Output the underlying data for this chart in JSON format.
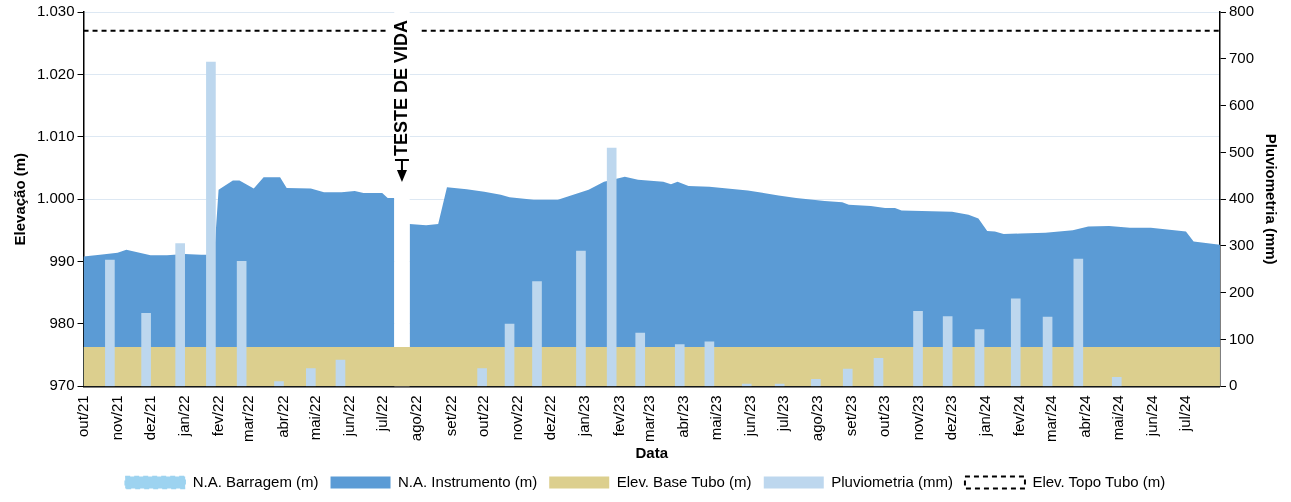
{
  "chart_data": {
    "type": "area",
    "xlabel": "Data",
    "ylabel": "Elevação (m)",
    "y2label": "Pluviometria (mm)",
    "xlim": [
      "2021-10-01",
      "2024-08-01"
    ],
    "xticks": [
      {
        "value": "2021-10-01",
        "label": "out/21"
      },
      {
        "value": "2021-11-01",
        "label": "nov/21"
      },
      {
        "value": "2021-12-01",
        "label": "dez/21"
      },
      {
        "value": "2022-01-01",
        "label": "jan/22"
      },
      {
        "value": "2022-02-01",
        "label": "fev/22"
      },
      {
        "value": "2022-03-01",
        "label": "mar/22"
      },
      {
        "value": "2022-04-01",
        "label": "abr/22"
      },
      {
        "value": "2022-05-01",
        "label": "mai/22"
      },
      {
        "value": "2022-06-01",
        "label": "jun/22"
      },
      {
        "value": "2022-07-01",
        "label": "jul/22"
      },
      {
        "value": "2022-08-01",
        "label": "ago/22"
      },
      {
        "value": "2022-09-01",
        "label": "set/22"
      },
      {
        "value": "2022-10-01",
        "label": "out/22"
      },
      {
        "value": "2022-11-01",
        "label": "nov/22"
      },
      {
        "value": "2022-12-01",
        "label": "dez/22"
      },
      {
        "value": "2023-01-01",
        "label": "jan/23"
      },
      {
        "value": "2023-02-01",
        "label": "fev/23"
      },
      {
        "value": "2023-03-01",
        "label": "mar/23"
      },
      {
        "value": "2023-04-01",
        "label": "abr/23"
      },
      {
        "value": "2023-05-01",
        "label": "mai/23"
      },
      {
        "value": "2023-06-01",
        "label": "jun/23"
      },
      {
        "value": "2023-07-01",
        "label": "jul/23"
      },
      {
        "value": "2023-08-01",
        "label": "ago/23"
      },
      {
        "value": "2023-09-01",
        "label": "set/23"
      },
      {
        "value": "2023-10-01",
        "label": "out/23"
      },
      {
        "value": "2023-11-01",
        "label": "nov/23"
      },
      {
        "value": "2023-12-01",
        "label": "dez/23"
      },
      {
        "value": "2024-01-01",
        "label": "jan/24"
      },
      {
        "value": "2024-02-01",
        "label": "fev/24"
      },
      {
        "value": "2024-03-01",
        "label": "mar/24"
      },
      {
        "value": "2024-04-01",
        "label": "abr/24"
      },
      {
        "value": "2024-05-01",
        "label": "mai/24"
      },
      {
        "value": "2024-06-01",
        "label": "jun/24"
      },
      {
        "value": "2024-07-01",
        "label": "jul/24"
      }
    ],
    "ylim": [
      970,
      1030
    ],
    "yticks": [
      {
        "value": 970,
        "label": "970"
      },
      {
        "value": 980,
        "label": "980"
      },
      {
        "value": 990,
        "label": "990"
      },
      {
        "value": 1000,
        "label": "1.000"
      },
      {
        "value": 1010,
        "label": "1.010"
      },
      {
        "value": 1020,
        "label": "1.020"
      },
      {
        "value": 1030,
        "label": "1.030"
      }
    ],
    "y2lim": [
      0,
      800
    ],
    "y2ticks": [
      0,
      100,
      200,
      300,
      400,
      500,
      600,
      700,
      800
    ],
    "grid": "y",
    "legend": "bottom",
    "marker": "none",
    "bands": [
      {
        "axis": "x",
        "from": "2022-07-11",
        "to": "2022-07-25",
        "label": "TESTE DE VIDA",
        "color": "#ffffff"
      }
    ],
    "series": [
      {
        "name": "N.A. Barragem (m)",
        "line_style": "dashed",
        "color": "#9dd3f0"
      },
      {
        "name": "N.A. Instrumento (m)",
        "color": "#5b9bd5",
        "x": [
          "2021-10-01",
          "2021-10-16",
          "2021-11-01",
          "2021-11-09",
          "2021-11-16",
          "2021-12-01",
          "2021-12-16",
          "2022-01-01",
          "2022-01-16",
          "2022-01-28",
          "2022-02-01",
          "2022-02-14",
          "2022-02-20",
          "2022-03-05",
          "2022-03-14",
          "2022-03-29",
          "2022-04-04",
          "2022-04-26",
          "2022-05-08",
          "2022-05-24",
          "2022-06-05",
          "2022-06-13",
          "2022-06-30",
          "2022-07-05",
          "2022-07-11",
          "2022-07-18",
          "2022-07-25",
          "2022-08-09",
          "2022-08-20",
          "2022-08-28",
          "2022-09-15",
          "2022-10-01",
          "2022-10-16",
          "2022-10-24",
          "2022-11-15",
          "2022-12-07",
          "2022-12-21",
          "2023-01-04",
          "2023-01-18",
          "2023-02-06",
          "2023-02-18",
          "2023-03-13",
          "2023-03-20",
          "2023-03-26",
          "2023-04-05",
          "2023-04-24",
          "2023-05-29",
          "2023-06-26",
          "2023-07-12",
          "2023-08-07",
          "2023-08-23",
          "2023-08-29",
          "2023-09-18",
          "2023-10-01",
          "2023-10-10",
          "2023-10-16",
          "2023-12-01",
          "2023-12-16",
          "2023-12-25",
          "2024-01-02",
          "2024-01-09",
          "2024-01-17",
          "2024-02-01",
          "2024-02-24",
          "2024-03-20",
          "2024-04-03",
          "2024-04-22",
          "2024-05-11",
          "2024-05-30",
          "2024-07-01",
          "2024-07-08",
          "2024-08-01"
        ],
        "values": [
          990.8,
          991.1,
          991.4,
          991.9,
          991.6,
          991.0,
          991.0,
          991.2,
          991.1,
          991.1,
          1001.5,
          1003.0,
          1003.0,
          1001.7,
          1003.5,
          1003.5,
          1001.8,
          1001.7,
          1001.1,
          1001.1,
          1001.3,
          1001.0,
          1001.0,
          1000.2,
          1000.2,
          null,
          996.0,
          995.8,
          996.0,
          1001.9,
          1001.6,
          1001.2,
          1000.7,
          1000.3,
          999.9,
          999.9,
          1000.7,
          1001.5,
          1002.8,
          1003.6,
          1003.1,
          1002.8,
          1002.4,
          1002.8,
          1002.1,
          1002.0,
          1001.4,
          1000.6,
          1000.2,
          999.7,
          999.5,
          999.1,
          998.9,
          998.6,
          998.6,
          998.2,
          998.0,
          997.5,
          996.9,
          994.9,
          994.8,
          994.4,
          994.5,
          994.6,
          995.0,
          995.6,
          995.7,
          995.4,
          995.4,
          994.8,
          993.2,
          992.7
        ]
      },
      {
        "name": "Elev. Base Tubo (m)",
        "color": "#dccf8e",
        "x": [
          "2021-10-01",
          "2024-08-01"
        ],
        "values": [
          976.3,
          976.3
        ]
      },
      {
        "name": "Pluviometria (mm)",
        "type": "bar",
        "axis": "y2",
        "color": "#bdd7ee",
        "x": [
          "2021-10-25",
          "2021-11-27",
          "2021-12-28",
          "2022-01-25",
          "2022-02-22",
          "2022-03-28",
          "2022-04-26",
          "2022-05-23",
          "2022-09-29",
          "2022-10-24",
          "2022-11-18",
          "2022-12-28",
          "2023-01-25",
          "2023-02-20",
          "2023-03-28",
          "2023-04-24",
          "2023-05-28",
          "2023-06-27",
          "2023-07-30",
          "2023-08-28",
          "2023-09-25",
          "2023-10-31",
          "2023-11-27",
          "2023-12-26",
          "2024-01-28",
          "2024-02-26",
          "2024-03-25",
          "2024-04-29"
        ],
        "values": [
          270,
          156,
          305,
          693,
          267,
          10,
          38,
          56,
          38,
          133,
          224,
          289,
          509,
          114,
          89,
          95,
          5,
          5,
          15,
          37,
          60,
          160,
          149,
          121,
          187,
          148,
          272,
          19
        ]
      },
      {
        "name": "Elev. Topo Tubo (m)",
        "type": "line",
        "line_style": "dashed",
        "color": "#000000",
        "x": [
          "2021-10-01",
          "2022-07-04",
          "2022-07-18",
          "2022-08-05",
          "2024-08-01"
        ],
        "values": [
          1027,
          1027,
          null,
          1027,
          1027
        ]
      }
    ]
  }
}
